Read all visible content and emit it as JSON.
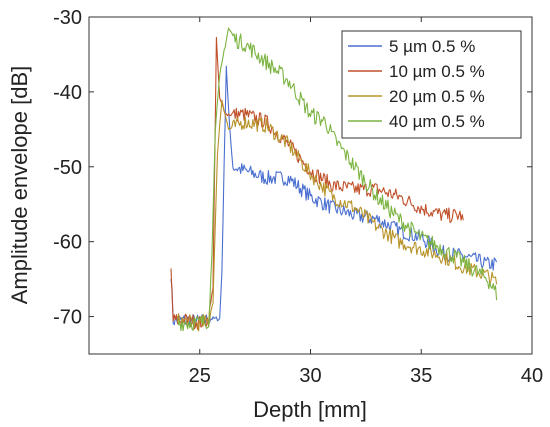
{
  "chart_data": {
    "type": "line",
    "title": "",
    "xlabel": "Depth [mm]",
    "ylabel": "Amplitude envelope [dB]",
    "xlim": [
      20,
      40
    ],
    "ylim": [
      -75,
      -30
    ],
    "x_ticks": [
      25,
      30,
      35,
      40
    ],
    "y_ticks": [
      -30,
      -40,
      -50,
      -60,
      -70
    ],
    "grid": false,
    "legend_position": "top-right",
    "series": [
      {
        "name": "5 µm 0.5 %",
        "color": "#4a6fcf",
        "noise": 1.0,
        "points": [
          [
            23.7,
            -64
          ],
          [
            23.8,
            -70.5
          ],
          [
            24.5,
            -70.5
          ],
          [
            25.0,
            -70.7
          ],
          [
            25.5,
            -70.3
          ],
          [
            25.9,
            -70.3
          ],
          [
            26.0,
            -64
          ],
          [
            26.1,
            -50
          ],
          [
            26.2,
            -36.5
          ],
          [
            26.35,
            -45
          ],
          [
            26.5,
            -50
          ],
          [
            27.0,
            -50.5
          ],
          [
            28.0,
            -51.5
          ],
          [
            29.0,
            -51.5
          ],
          [
            30.0,
            -54
          ],
          [
            31.0,
            -55.5
          ],
          [
            32.0,
            -56.5
          ],
          [
            33.0,
            -57
          ],
          [
            34.0,
            -58.5
          ],
          [
            35.0,
            -59.5
          ],
          [
            36.0,
            -61.5
          ],
          [
            37.0,
            -62
          ],
          [
            38.0,
            -63
          ],
          [
            38.4,
            -63
          ]
        ]
      },
      {
        "name": "10 µm 0.5 %",
        "color": "#c0502a",
        "noise": 1.0,
        "points": [
          [
            23.7,
            -64
          ],
          [
            23.8,
            -70.5
          ],
          [
            24.5,
            -70.5
          ],
          [
            25.0,
            -70.8
          ],
          [
            25.4,
            -70.4
          ],
          [
            25.6,
            -66
          ],
          [
            25.75,
            -33
          ],
          [
            25.9,
            -41
          ],
          [
            26.2,
            -43
          ],
          [
            27.0,
            -43
          ],
          [
            28.0,
            -44
          ],
          [
            29.0,
            -47
          ],
          [
            30.0,
            -50.5
          ],
          [
            31.0,
            -52.5
          ],
          [
            32.0,
            -53
          ],
          [
            33.0,
            -53
          ],
          [
            34.0,
            -54
          ],
          [
            35.0,
            -55.5
          ],
          [
            36.0,
            -56.5
          ],
          [
            36.8,
            -56.5
          ],
          [
            36.9,
            -57.5
          ]
        ]
      },
      {
        "name": "20 µm 0.5 %",
        "color": "#b8932a",
        "noise": 1.0,
        "points": [
          [
            24.0,
            -70.5
          ],
          [
            25.0,
            -71
          ],
          [
            25.4,
            -70.6
          ],
          [
            25.6,
            -68
          ],
          [
            25.8,
            -48
          ],
          [
            26.0,
            -41
          ],
          [
            26.3,
            -45
          ],
          [
            27.0,
            -44
          ],
          [
            28.0,
            -44.5
          ],
          [
            29.0,
            -47
          ],
          [
            30.0,
            -51
          ],
          [
            31.0,
            -54
          ],
          [
            32.0,
            -55.5
          ],
          [
            33.0,
            -58
          ],
          [
            34.0,
            -60
          ],
          [
            35.0,
            -61
          ],
          [
            36.0,
            -62
          ],
          [
            37.0,
            -63.5
          ],
          [
            38.0,
            -64.5
          ],
          [
            38.4,
            -65.5
          ]
        ]
      },
      {
        "name": "40 µm 0.5 %",
        "color": "#7cb442",
        "noise": 1.1,
        "points": [
          [
            24.0,
            -70.8
          ],
          [
            25.0,
            -70.8
          ],
          [
            25.4,
            -70.5
          ],
          [
            25.55,
            -62
          ],
          [
            25.7,
            -45
          ],
          [
            25.9,
            -38
          ],
          [
            26.1,
            -34.5
          ],
          [
            26.3,
            -31.5
          ],
          [
            26.6,
            -33
          ],
          [
            27.0,
            -33.5
          ],
          [
            28.0,
            -36
          ],
          [
            29.0,
            -38.5
          ],
          [
            30.0,
            -43
          ],
          [
            30.7,
            -44
          ],
          [
            31.0,
            -46
          ],
          [
            32.0,
            -50
          ],
          [
            33.0,
            -54
          ],
          [
            34.0,
            -57
          ],
          [
            35.0,
            -59.5
          ],
          [
            36.0,
            -61
          ],
          [
            37.0,
            -63
          ],
          [
            38.0,
            -65
          ],
          [
            38.4,
            -67
          ]
        ]
      }
    ]
  }
}
